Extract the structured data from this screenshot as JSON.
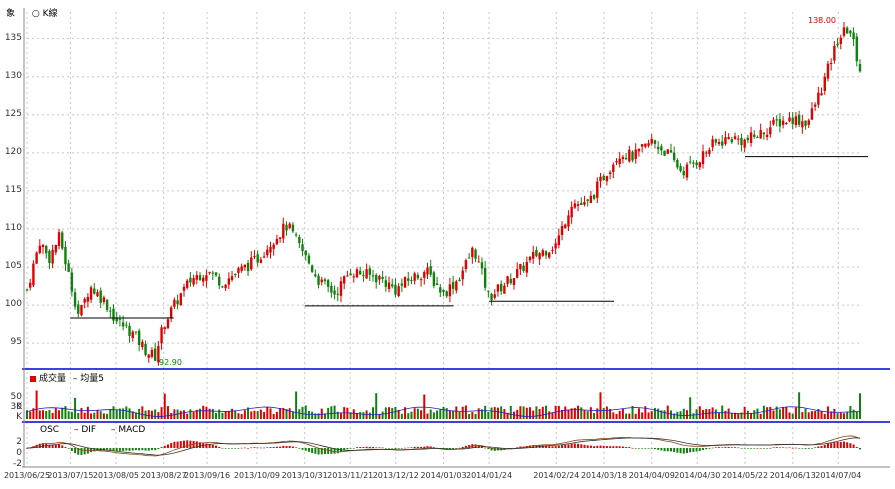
{
  "header": {
    "left_label": "象",
    "mode_icon": "radio-icon",
    "mode_label": "K線"
  },
  "volume_panel": {
    "legend_volume": "成交量",
    "legend_ma": "均量5",
    "ticks": [
      "30 K",
      "50 K"
    ]
  },
  "macd_panel": {
    "legend_osc": "OSC",
    "legend_dif": "DIF",
    "legend_macd": "MACD",
    "ticks": [
      "2",
      "0",
      "-2"
    ]
  },
  "annotations": {
    "high": "138.00",
    "low": "92.90"
  },
  "colors": {
    "up": "#e00000",
    "down": "#108010",
    "grid": "#c8c8c8",
    "divider": "#0000d0",
    "ma_line": "#2020c0",
    "dif_line": "#8b4513",
    "macd_line": "#333333"
  },
  "chart_data": {
    "type": "candlestick",
    "x_ticks": [
      "2013/06/25",
      "2013/07/15",
      "2013/08/05",
      "2013/08/27",
      "2013/09/16",
      "2013/10/09",
      "2013/10/31",
      "2013/11/21",
      "2013/12/12",
      "2014/01/03",
      "2014/01/24",
      "2014/02/24",
      "2014/03/18",
      "2014/04/09",
      "2014/04/30",
      "2014/05/22",
      "2014/06/13",
      "2014/07/04"
    ],
    "y_ticks": [
      95,
      100,
      105,
      110,
      115,
      120,
      125,
      130,
      135
    ],
    "ylim": [
      92,
      138.5
    ],
    "price_series": [
      [
        "2013/06/25",
        102.0
      ],
      [
        "2013/07/01",
        108.5
      ],
      [
        "2013/07/05",
        106.0
      ],
      [
        "2013/07/10",
        109.0
      ],
      [
        "2013/07/15",
        103.0
      ],
      [
        "2013/07/19",
        98.5
      ],
      [
        "2013/07/24",
        102.5
      ],
      [
        "2013/07/31",
        100.5
      ],
      [
        "2013/08/05",
        98.0
      ],
      [
        "2013/08/12",
        96.5
      ],
      [
        "2013/08/19",
        94.0
      ],
      [
        "2013/08/23",
        93.2
      ],
      [
        "2013/08/27",
        97.5
      ],
      [
        "2013/09/03",
        101.0
      ],
      [
        "2013/09/09",
        103.5
      ],
      [
        "2013/09/16",
        104.5
      ],
      [
        "2013/09/23",
        103.0
      ],
      [
        "2013/10/01",
        104.5
      ],
      [
        "2013/10/09",
        106.0
      ],
      [
        "2013/10/16",
        108.5
      ],
      [
        "2013/10/23",
        110.5
      ],
      [
        "2013/10/31",
        106.5
      ],
      [
        "2013/11/07",
        103.0
      ],
      [
        "2013/11/14",
        101.5
      ],
      [
        "2013/11/21",
        104.5
      ],
      [
        "2013/11/28",
        104.0
      ],
      [
        "2013/12/05",
        103.5
      ],
      [
        "2013/12/12",
        102.0
      ],
      [
        "2013/12/19",
        103.5
      ],
      [
        "2013/12/26",
        104.5
      ],
      [
        "2014/01/03",
        101.5
      ],
      [
        "2014/01/10",
        103.5
      ],
      [
        "2014/01/17",
        107.5
      ],
      [
        "2014/01/24",
        101.0
      ],
      [
        "2014/02/07",
        104.5
      ],
      [
        "2014/02/14",
        106.5
      ],
      [
        "2014/02/24",
        108.0
      ],
      [
        "2014/03/03",
        113.5
      ],
      [
        "2014/03/10",
        113.0
      ],
      [
        "2014/03/18",
        117.0
      ],
      [
        "2014/03/25",
        120.0
      ],
      [
        "2014/04/01",
        119.5
      ],
      [
        "2014/04/09",
        121.5
      ],
      [
        "2014/04/16",
        120.0
      ],
      [
        "2014/04/23",
        117.5
      ],
      [
        "2014/04/30",
        119.0
      ],
      [
        "2014/05/07",
        121.0
      ],
      [
        "2014/05/15",
        122.0
      ],
      [
        "2014/05/22",
        121.5
      ],
      [
        "2014/05/29",
        122.5
      ],
      [
        "2014/06/06",
        124.0
      ],
      [
        "2014/06/13",
        124.5
      ],
      [
        "2014/06/20",
        124.0
      ],
      [
        "2014/06/27",
        129.0
      ],
      [
        "2014/07/04",
        135.0
      ],
      [
        "2014/07/09",
        136.5
      ],
      [
        "2014/07/14",
        131.0
      ]
    ],
    "support_lines": [
      {
        "from": "2013/07/15",
        "to": "2013/08/27",
        "y": 98.3
      },
      {
        "from": "2013/10/31",
        "to": "2014/01/03",
        "y": 99.9
      },
      {
        "from": "2014/01/24",
        "to": "2014/03/18",
        "y": 100.5
      },
      {
        "from": "2014/05/22",
        "to": "2014/07/14",
        "y": 119.5
      }
    ],
    "volume_ylim": [
      0,
      60
    ],
    "macd_ylim": [
      -2.5,
      2.5
    ]
  }
}
